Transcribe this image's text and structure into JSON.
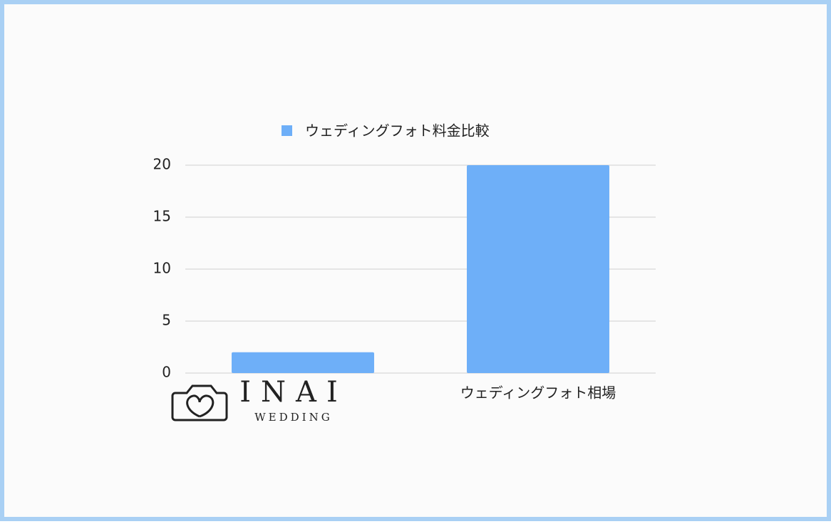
{
  "chart_data": {
    "type": "bar",
    "categories": [
      null,
      "ウェディングフォト相場"
    ],
    "series": [
      {
        "name": "ウェディングフォト料金比較",
        "color": "#6eaff8",
        "values": [
          2,
          20
        ]
      }
    ],
    "ylim": [
      0,
      20
    ],
    "yticks": [
      0,
      5,
      10,
      15,
      20
    ],
    "grid": true,
    "legend": "top"
  },
  "logo": {
    "title": "INAI",
    "subtitle": "WEDDING"
  }
}
